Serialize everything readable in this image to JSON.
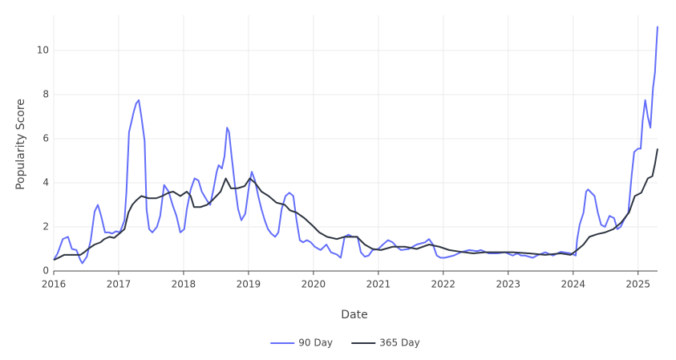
{
  "chart_data": {
    "type": "line",
    "xlabel": "Date",
    "ylabel": "Popularity Score",
    "xlim": [
      2016,
      2025.3
    ],
    "ylim": [
      0,
      11.6
    ],
    "xticks": [
      2016,
      2017,
      2018,
      2019,
      2020,
      2021,
      2022,
      2023,
      2024,
      2025
    ],
    "yticks": [
      0,
      2,
      4,
      6,
      8,
      10
    ],
    "grid": true,
    "legend": "bottom",
    "series": [
      {
        "name": "90 Day",
        "color": "#636efa",
        "x": [
          2016.0,
          2016.06,
          2016.14,
          2016.22,
          2016.28,
          2016.35,
          2016.41,
          2016.44,
          2016.51,
          2016.57,
          2016.63,
          2016.68,
          2016.73,
          2016.79,
          2016.85,
          2016.9,
          2016.96,
          2017.02,
          2017.09,
          2017.12,
          2017.16,
          2017.2,
          2017.23,
          2017.27,
          2017.31,
          2017.35,
          2017.4,
          2017.43,
          2017.47,
          2017.52,
          2017.59,
          2017.64,
          2017.7,
          2017.77,
          2017.83,
          2017.89,
          2017.95,
          2018.01,
          2018.05,
          2018.11,
          2018.17,
          2018.23,
          2018.28,
          2018.36,
          2018.41,
          2018.46,
          2018.51,
          2018.54,
          2018.59,
          2018.63,
          2018.67,
          2018.7,
          2018.74,
          2018.79,
          2018.84,
          2018.89,
          2018.95,
          2019.01,
          2019.05,
          2019.1,
          2019.15,
          2019.2,
          2019.25,
          2019.3,
          2019.35,
          2019.41,
          2019.46,
          2019.51,
          2019.57,
          2019.63,
          2019.69,
          2019.74,
          2019.79,
          2019.84,
          2019.9,
          2019.96,
          2020.02,
          2020.11,
          2020.2,
          2020.27,
          2020.36,
          2020.42,
          2020.48,
          2020.54,
          2020.6,
          2020.68,
          2020.73,
          2020.79,
          2020.85,
          2020.91,
          2021.0,
          2021.07,
          2021.15,
          2021.22,
          2021.28,
          2021.35,
          2021.47,
          2021.59,
          2021.72,
          2021.78,
          2021.84,
          2021.9,
          2021.96,
          2022.02,
          2022.09,
          2022.16,
          2022.27,
          2022.4,
          2022.52,
          2022.58,
          2022.7,
          2022.83,
          2022.95,
          2023.07,
          2023.14,
          2023.2,
          2023.26,
          2023.32,
          2023.38,
          2023.44,
          2023.57,
          2023.69,
          2023.81,
          2023.96,
          2024.04,
          2024.06,
          2024.1,
          2024.16,
          2024.2,
          2024.23,
          2024.28,
          2024.33,
          2024.38,
          2024.43,
          2024.49,
          2024.56,
          2024.63,
          2024.68,
          2024.73,
          2024.78,
          2024.85,
          2024.9,
          2024.94,
          2025.0,
          2025.04,
          2025.07,
          2025.11,
          2025.15,
          2025.19,
          2025.21,
          2025.23,
          2025.26,
          2025.28,
          2025.3
        ],
        "values": [
          0.5,
          0.8,
          1.45,
          1.55,
          1.0,
          0.95,
          0.5,
          0.35,
          0.65,
          1.4,
          2.7,
          3.0,
          2.5,
          1.75,
          1.75,
          1.7,
          1.8,
          1.75,
          2.3,
          3.6,
          6.3,
          6.8,
          7.2,
          7.6,
          7.75,
          7.0,
          5.9,
          2.8,
          1.9,
          1.75,
          2.0,
          2.5,
          3.9,
          3.6,
          3.0,
          2.5,
          1.75,
          1.9,
          2.8,
          3.7,
          4.2,
          4.1,
          3.6,
          3.2,
          3.0,
          3.7,
          4.5,
          4.8,
          4.65,
          5.2,
          6.5,
          6.3,
          5.2,
          3.9,
          2.8,
          2.3,
          2.6,
          3.9,
          4.5,
          4.1,
          3.4,
          2.8,
          2.3,
          1.9,
          1.7,
          1.55,
          1.75,
          2.8,
          3.4,
          3.55,
          3.4,
          2.3,
          1.4,
          1.3,
          1.4,
          1.3,
          1.1,
          0.95,
          1.2,
          0.85,
          0.75,
          0.6,
          1.55,
          1.65,
          1.55,
          1.55,
          0.85,
          0.65,
          0.7,
          0.95,
          1.0,
          1.2,
          1.4,
          1.3,
          1.1,
          0.95,
          1.0,
          1.2,
          1.3,
          1.45,
          1.2,
          0.7,
          0.6,
          0.6,
          0.65,
          0.7,
          0.85,
          0.95,
          0.9,
          0.95,
          0.8,
          0.8,
          0.85,
          0.7,
          0.8,
          0.7,
          0.7,
          0.65,
          0.6,
          0.7,
          0.85,
          0.7,
          0.87,
          0.8,
          0.7,
          1.4,
          2.1,
          2.65,
          3.6,
          3.7,
          3.55,
          3.4,
          2.65,
          2.1,
          2.0,
          2.5,
          2.4,
          1.9,
          2.0,
          2.3,
          2.65,
          4.3,
          5.4,
          5.55,
          5.55,
          6.8,
          7.75,
          7.0,
          6.5,
          7.4,
          8.3,
          9.0,
          10.1,
          11.1
        ]
      },
      {
        "name": "365 Day",
        "color": "#2f3642",
        "x": [
          2016.0,
          2016.06,
          2016.16,
          2016.28,
          2016.41,
          2016.47,
          2016.53,
          2016.63,
          2016.72,
          2016.78,
          2016.86,
          2016.93,
          2017.0,
          2017.09,
          2017.15,
          2017.21,
          2017.27,
          2017.35,
          2017.46,
          2017.58,
          2017.67,
          2017.77,
          2017.84,
          2017.95,
          2018.05,
          2018.11,
          2018.16,
          2018.26,
          2018.36,
          2018.44,
          2018.57,
          2018.65,
          2018.73,
          2018.83,
          2018.94,
          2019.02,
          2019.1,
          2019.2,
          2019.31,
          2019.43,
          2019.56,
          2019.64,
          2019.74,
          2019.86,
          2019.99,
          2020.09,
          2020.21,
          2020.36,
          2020.48,
          2020.67,
          2020.79,
          2020.91,
          2021.04,
          2021.22,
          2021.41,
          2021.59,
          2021.78,
          2021.94,
          2022.09,
          2022.27,
          2022.46,
          2022.64,
          2022.83,
          2023.07,
          2023.32,
          2023.57,
          2023.81,
          2023.96,
          2024.06,
          2024.16,
          2024.25,
          2024.37,
          2024.49,
          2024.62,
          2024.74,
          2024.86,
          2024.95,
          2025.05,
          2025.15,
          2025.22,
          2025.26,
          2025.3
        ],
        "values": [
          0.5,
          0.58,
          0.73,
          0.73,
          0.73,
          0.85,
          1.0,
          1.2,
          1.3,
          1.45,
          1.55,
          1.5,
          1.67,
          1.9,
          2.65,
          3.0,
          3.2,
          3.4,
          3.3,
          3.3,
          3.4,
          3.55,
          3.6,
          3.4,
          3.6,
          3.4,
          2.9,
          2.9,
          3.0,
          3.2,
          3.6,
          4.2,
          3.75,
          3.75,
          3.85,
          4.2,
          4.0,
          3.6,
          3.4,
          3.1,
          3.0,
          2.75,
          2.65,
          2.4,
          2.05,
          1.75,
          1.55,
          1.45,
          1.55,
          1.55,
          1.2,
          1.0,
          0.95,
          1.1,
          1.1,
          1.0,
          1.2,
          1.1,
          0.95,
          0.87,
          0.8,
          0.85,
          0.85,
          0.85,
          0.8,
          0.73,
          0.8,
          0.73,
          0.95,
          1.2,
          1.55,
          1.67,
          1.75,
          1.9,
          2.2,
          2.65,
          3.4,
          3.55,
          4.2,
          4.3,
          4.85,
          5.55
        ]
      }
    ]
  }
}
